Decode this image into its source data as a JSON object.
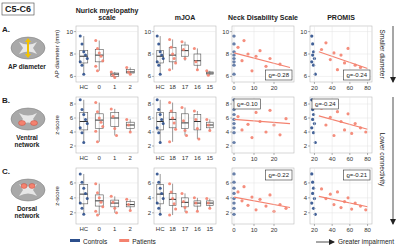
{
  "figure": {
    "title": "C5-C6",
    "columns": [
      "Nurick myelopathy scale",
      "mJOA",
      "Neck Disability Scale",
      "PROMIS"
    ],
    "rows": [
      {
        "letter": "A.",
        "name": "AP diameter"
      },
      {
        "letter": "B.",
        "name": "Ventral network"
      },
      {
        "letter": "C.",
        "name": "Dorsal network"
      }
    ],
    "side_notes": [
      "Smaller diameter",
      "Lower connectivity"
    ],
    "legend": [
      {
        "name": "Controls",
        "color": "#2c4f8c"
      },
      {
        "name": "Patients",
        "color": "#f4826f"
      }
    ],
    "footer": "Greater impairment"
  },
  "chart_data": [
    {
      "type": "box",
      "ylabel": "AP diameter (mm)",
      "categories": [
        "HC",
        "0",
        "1",
        "2"
      ],
      "colors": [
        "#2c4f8c",
        "#f4826f",
        "#f4826f",
        "#f4826f"
      ],
      "ylim": [
        5.5,
        10.5
      ],
      "yticks": [
        6,
        8,
        10
      ],
      "grid": true,
      "boxes": [
        {
          "min": 6.2,
          "q1": 7.2,
          "median": 7.8,
          "q3": 8.3,
          "max": 9.6
        },
        {
          "min": 6.5,
          "q1": 7.3,
          "median": 7.9,
          "q3": 8.4,
          "max": 9.2
        },
        {
          "min": 5.9,
          "q1": 6.0,
          "median": 6.2,
          "q3": 6.3,
          "max": 6.4
        },
        {
          "min": 6.2,
          "q1": 6.3,
          "median": 6.4,
          "q3": 6.6,
          "max": 6.8
        }
      ],
      "points": [
        [
          9.6,
          8.9,
          8.2,
          7.9,
          7.6,
          7.3,
          7.0,
          6.2
        ],
        [
          9.2,
          8.5,
          8.1,
          7.8,
          7.4,
          6.9,
          6.5
        ],
        [
          6.4,
          6.1,
          5.9
        ],
        [
          6.8,
          6.4,
          6.2
        ]
      ]
    },
    {
      "type": "box",
      "categories": [
        "HC",
        "18",
        "17",
        "16",
        "15"
      ],
      "colors": [
        "#2c4f8c",
        "#f4826f",
        "#f4826f",
        "#f4826f",
        "#f4826f"
      ],
      "ylim": [
        5.5,
        10.5
      ],
      "yticks": [
        6,
        8,
        10
      ],
      "grid": true,
      "boxes": [
        {
          "min": 6.2,
          "q1": 7.2,
          "median": 7.8,
          "q3": 8.3,
          "max": 9.6
        },
        {
          "min": 6.6,
          "q1": 7.3,
          "median": 7.9,
          "q3": 8.6,
          "max": 9.3
        },
        {
          "min": 7.4,
          "q1": 7.8,
          "median": 8.3,
          "q3": 8.8,
          "max": 9.1
        },
        {
          "min": 6.6,
          "q1": 7.0,
          "median": 7.4,
          "q3": 8.0,
          "max": 8.5
        },
        {
          "min": 6.1,
          "q1": 6.2,
          "median": 6.3,
          "q3": 6.4,
          "max": 6.5
        }
      ],
      "points": [
        [
          9.6,
          8.9,
          8.2,
          7.9,
          7.6,
          7.3,
          7.0,
          6.2
        ],
        [
          9.3,
          8.6,
          8.0,
          7.6,
          7.2,
          6.6
        ],
        [
          9.1,
          8.4,
          7.6
        ],
        [
          8.5,
          7.3,
          6.6
        ],
        [
          6.5,
          6.1
        ]
      ]
    },
    {
      "type": "scatter",
      "xlim": [
        -1,
        30
      ],
      "xticks": [
        0,
        10,
        20
      ],
      "ylim": [
        5.5,
        10.5
      ],
      "yticks": [
        6,
        8,
        10
      ],
      "grid": true,
      "controls": {
        "x": [
          0,
          0,
          0,
          0,
          0,
          0,
          0,
          0
        ],
        "values": [
          9.6,
          8.9,
          8.2,
          7.9,
          7.6,
          7.3,
          7.0,
          6.2
        ]
      },
      "patients": {
        "x": [
          2,
          4,
          5,
          7,
          9,
          11,
          13,
          16,
          18,
          20,
          23,
          26
        ],
        "values": [
          8.6,
          7.4,
          9.2,
          8.0,
          6.5,
          7.8,
          8.3,
          6.9,
          7.6,
          6.2,
          7.1,
          6.4
        ]
      },
      "fit": {
        "x": [
          0,
          28
        ],
        "values": [
          8.1,
          6.8
        ]
      },
      "annotation": "ϱ=-0.28"
    },
    {
      "type": "scatter",
      "xlim": [
        15,
        85
      ],
      "xticks": [
        20,
        40,
        60,
        80
      ],
      "ylim": [
        5.5,
        10.5
      ],
      "yticks": [
        6,
        8,
        10
      ],
      "grid": true,
      "controls": {
        "x": [
          17,
          18,
          19,
          18,
          20,
          17,
          19,
          21
        ],
        "values": [
          9.6,
          8.9,
          8.2,
          7.9,
          7.6,
          7.3,
          7.0,
          6.2
        ]
      },
      "patients": {
        "x": [
          28,
          33,
          38,
          42,
          46,
          50,
          54,
          58,
          62,
          66,
          72,
          78
        ],
        "values": [
          8.4,
          9.0,
          7.5,
          8.1,
          6.6,
          7.9,
          7.2,
          8.5,
          6.3,
          7.0,
          6.8,
          6.1
        ]
      },
      "fit": {
        "x": [
          25,
          80
        ],
        "values": [
          8.2,
          6.7
        ]
      },
      "annotation": "ϱ=-0.24"
    },
    {
      "type": "box",
      "ylabel": "z-score",
      "categories": [
        "HC",
        "0",
        "1",
        "2"
      ],
      "colors": [
        "#2c4f8c",
        "#f4826f",
        "#f4826f",
        "#f4826f"
      ],
      "ylim": [
        1,
        9
      ],
      "yticks": [
        2,
        4,
        6,
        8
      ],
      "grid": true,
      "boxes": [
        {
          "min": 2.5,
          "q1": 4.3,
          "median": 5.5,
          "q3": 6.8,
          "max": 8.6
        },
        {
          "min": 2.6,
          "q1": 4.5,
          "median": 5.7,
          "q3": 6.6,
          "max": 8.2
        },
        {
          "min": 3.5,
          "q1": 4.8,
          "median": 6.0,
          "q3": 6.8,
          "max": 7.3
        },
        {
          "min": 4.0,
          "q1": 4.5,
          "median": 5.0,
          "q3": 5.4,
          "max": 5.8
        }
      ],
      "points": [
        [
          8.6,
          7.2,
          6.5,
          5.8,
          5.2,
          4.6,
          3.9,
          2.5
        ],
        [
          8.2,
          6.9,
          6.0,
          5.4,
          4.8,
          4.1,
          2.6
        ],
        [
          7.3,
          6.2,
          4.5,
          3.5
        ],
        [
          5.8,
          5.0,
          4.0
        ]
      ]
    },
    {
      "type": "box",
      "categories": [
        "HC",
        "18",
        "17",
        "16",
        "15"
      ],
      "colors": [
        "#2c4f8c",
        "#f4826f",
        "#f4826f",
        "#f4826f",
        "#f4826f"
      ],
      "ylim": [
        1,
        9
      ],
      "yticks": [
        2,
        4,
        6,
        8
      ],
      "grid": true,
      "boxes": [
        {
          "min": 2.5,
          "q1": 4.3,
          "median": 5.5,
          "q3": 6.8,
          "max": 8.6
        },
        {
          "min": 2.6,
          "q1": 4.6,
          "median": 5.8,
          "q3": 6.8,
          "max": 8.2
        },
        {
          "min": 3.5,
          "q1": 4.5,
          "median": 5.3,
          "q3": 6.6,
          "max": 7.5
        },
        {
          "min": 3.0,
          "q1": 4.3,
          "median": 5.5,
          "q3": 6.5,
          "max": 7.0
        },
        {
          "min": 4.2,
          "q1": 4.6,
          "median": 5.0,
          "q3": 5.4,
          "max": 5.8
        }
      ],
      "points": [
        [
          8.6,
          7.2,
          6.5,
          5.8,
          5.2,
          4.6,
          3.9,
          2.5
        ],
        [
          8.2,
          7.0,
          6.0,
          5.3,
          4.4,
          2.6
        ],
        [
          7.5,
          5.6,
          4.2,
          3.5
        ],
        [
          7.0,
          5.8,
          4.5,
          3.0
        ],
        [
          5.8,
          5.0,
          4.2
        ]
      ]
    },
    {
      "type": "scatter",
      "xlim": [
        -1,
        30
      ],
      "xticks": [
        0,
        10,
        20
      ],
      "ylim": [
        1,
        9
      ],
      "yticks": [
        2,
        4,
        6,
        8
      ],
      "grid": true,
      "controls": {
        "x": [
          0,
          0,
          0,
          0,
          0,
          0,
          0,
          0
        ],
        "values": [
          8.6,
          7.2,
          6.5,
          5.8,
          5.2,
          4.6,
          3.9,
          2.5
        ]
      },
      "patients": {
        "x": [
          2,
          4,
          5,
          7,
          9,
          11,
          13,
          16,
          18,
          20,
          23,
          26
        ],
        "values": [
          6.2,
          4.3,
          7.8,
          5.1,
          3.2,
          6.8,
          5.5,
          4.0,
          7.1,
          5.0,
          3.6,
          5.9
        ]
      },
      "fit": {
        "x": [
          0,
          28
        ],
        "values": [
          5.8,
          5.2
        ]
      },
      "annotation": "ϱ=-0.10"
    },
    {
      "type": "scatter",
      "xlim": [
        15,
        85
      ],
      "xticks": [
        20,
        40,
        60,
        80
      ],
      "ylim": [
        1,
        9
      ],
      "yticks": [
        2,
        4,
        6,
        8
      ],
      "grid": true,
      "controls": {
        "x": [
          17,
          18,
          19,
          18,
          20,
          17,
          19,
          21
        ],
        "values": [
          8.6,
          7.2,
          6.5,
          5.8,
          5.2,
          4.6,
          3.9,
          2.5
        ]
      },
      "patients": {
        "x": [
          28,
          33,
          38,
          42,
          46,
          50,
          54,
          58,
          62,
          66,
          72,
          78
        ],
        "values": [
          7.4,
          5.0,
          6.1,
          3.5,
          6.9,
          5.5,
          4.3,
          6.6,
          3.8,
          5.2,
          4.6,
          4.0
        ]
      },
      "fit": {
        "x": [
          25,
          80
        ],
        "values": [
          6.3,
          4.4
        ]
      },
      "annotation": "ϱ=-0.24"
    },
    {
      "type": "box",
      "ylabel": "z-score",
      "categories": [
        "HC",
        "0",
        "1",
        "2"
      ],
      "colors": [
        "#2c4f8c",
        "#f4826f",
        "#f4826f",
        "#f4826f"
      ],
      "ylim": [
        0.5,
        8
      ],
      "yticks": [
        2,
        4,
        6
      ],
      "grid": true,
      "boxes": [
        {
          "min": 1.8,
          "q1": 3.2,
          "median": 4.5,
          "q3": 5.8,
          "max": 7.2
        },
        {
          "min": 1.7,
          "q1": 2.9,
          "median": 3.6,
          "q3": 4.4,
          "max": 5.9
        },
        {
          "min": 2.0,
          "q1": 2.8,
          "median": 3.3,
          "q3": 3.7,
          "max": 4.2
        },
        {
          "min": 2.3,
          "q1": 2.8,
          "median": 3.1,
          "q3": 3.5,
          "max": 3.8
        }
      ],
      "points": [
        [
          7.2,
          6.1,
          5.3,
          4.6,
          3.9,
          3.3,
          2.6,
          1.8
        ],
        [
          5.9,
          4.7,
          4.0,
          3.4,
          2.8,
          2.2,
          1.7
        ],
        [
          4.2,
          3.4,
          2.6,
          2.0
        ],
        [
          3.8,
          3.1,
          2.3
        ]
      ]
    },
    {
      "type": "box",
      "categories": [
        "HC",
        "18",
        "17",
        "16",
        "15"
      ],
      "colors": [
        "#2c4f8c",
        "#f4826f",
        "#f4826f",
        "#f4826f",
        "#f4826f"
      ],
      "ylim": [
        0.5,
        8
      ],
      "yticks": [
        2,
        4,
        6
      ],
      "grid": true,
      "boxes": [
        {
          "min": 1.8,
          "q1": 3.2,
          "median": 4.5,
          "q3": 5.8,
          "max": 7.2
        },
        {
          "min": 1.7,
          "q1": 3.0,
          "median": 3.8,
          "q3": 4.6,
          "max": 5.9
        },
        {
          "min": 2.1,
          "q1": 2.8,
          "median": 3.4,
          "q3": 4.0,
          "max": 4.6
        },
        {
          "min": 2.2,
          "q1": 2.9,
          "median": 3.3,
          "q3": 3.6,
          "max": 4.0
        },
        {
          "min": 2.6,
          "q1": 3.0,
          "median": 3.3,
          "q3": 3.6,
          "max": 3.9
        }
      ],
      "points": [
        [
          7.2,
          6.1,
          5.3,
          4.6,
          3.9,
          3.3,
          2.6,
          1.8
        ],
        [
          5.9,
          4.8,
          3.9,
          3.2,
          2.5,
          1.7
        ],
        [
          4.6,
          3.5,
          2.7,
          2.1
        ],
        [
          4.0,
          3.3,
          2.2
        ],
        [
          3.9,
          3.3,
          2.6
        ]
      ]
    },
    {
      "type": "scatter",
      "xlim": [
        -1,
        30
      ],
      "xticks": [
        0,
        10,
        20
      ],
      "ylim": [
        0.5,
        8
      ],
      "yticks": [
        2,
        4,
        6
      ],
      "grid": true,
      "controls": {
        "x": [
          0,
          0,
          0,
          0,
          0,
          0,
          0,
          0
        ],
        "values": [
          7.2,
          6.1,
          5.3,
          4.6,
          3.9,
          3.3,
          2.6,
          1.8
        ]
      },
      "patients": {
        "x": [
          2,
          4,
          5,
          7,
          9,
          11,
          13,
          16,
          18,
          20,
          23,
          26
        ],
        "values": [
          4.8,
          3.6,
          5.5,
          3.0,
          4.1,
          2.4,
          3.8,
          2.9,
          4.4,
          2.2,
          3.1,
          2.6
        ]
      },
      "fit": {
        "x": [
          0,
          28
        ],
        "values": [
          4.1,
          2.7
        ]
      },
      "annotation": "ϱ=-0.22"
    },
    {
      "type": "scatter",
      "xlim": [
        15,
        85
      ],
      "xticks": [
        20,
        40,
        60,
        80
      ],
      "ylim": [
        0.5,
        8
      ],
      "yticks": [
        2,
        4,
        6
      ],
      "grid": true,
      "controls": {
        "x": [
          17,
          18,
          19,
          18,
          20,
          17,
          19,
          21
        ],
        "values": [
          7.2,
          6.1,
          5.3,
          4.6,
          3.9,
          3.3,
          2.6,
          1.8
        ]
      },
      "patients": {
        "x": [
          28,
          33,
          38,
          42,
          46,
          50,
          54,
          58,
          62,
          66,
          72,
          78
        ],
        "values": [
          5.2,
          3.9,
          4.5,
          3.1,
          4.8,
          2.7,
          3.5,
          4.0,
          2.5,
          3.3,
          2.9,
          2.4
        ]
      },
      "fit": {
        "x": [
          25,
          80
        ],
        "values": [
          4.2,
          2.8
        ]
      },
      "annotation": "ϱ=-0.21"
    }
  ]
}
